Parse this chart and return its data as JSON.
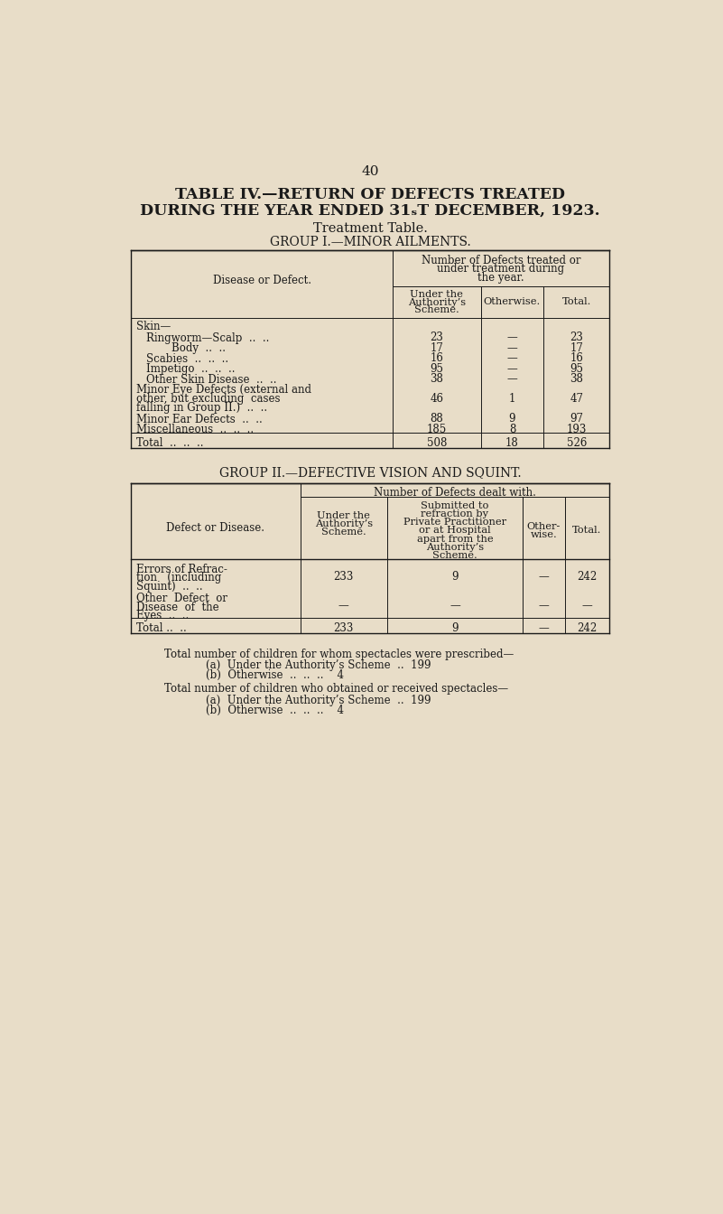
{
  "bg_color": "#e8ddc8",
  "text_color": "#1a1a1a",
  "page_number": "40",
  "title_line1": "TABLE IV.—RETURN OF DEFECTS TREATED",
  "title_line2": "DURING THE YEAR ENDED 31ST DECEMBER, 1923.",
  "subtitle1": "Treatment Table.",
  "subtitle2": "GROUP I.—MINOR AILMENTS.",
  "group2_title": "GROUP II.—DEFECTIVE VISION AND SQUINT."
}
